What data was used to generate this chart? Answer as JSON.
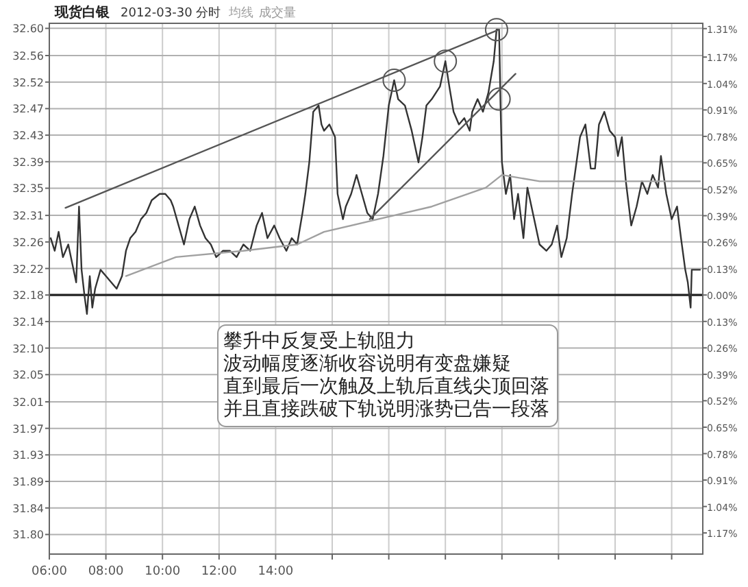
{
  "chart_data": {
    "type": "line",
    "title": "现货白银",
    "subtitle": "2012-03-30 分时",
    "annotations": [
      "成交量",
      "攀升中反复受上轨阻力",
      "波动幅度逐渐收容说明有变盘嫌疑",
      "直到最后一次触及上轨后直线尖顶回落",
      "并且直接跌破下轨说明涨势已告一段落"
    ],
    "xlim": [
      6,
      29.1
    ],
    "xticks": [
      {
        "value": 6,
        "label": "06:00"
      },
      {
        "value": 8,
        "label": "08:00"
      },
      {
        "value": 10,
        "label": "10:00"
      },
      {
        "value": 12,
        "label": "12:00"
      },
      {
        "value": 14,
        "label": "14:00"
      },
      {
        "value": 16,
        "label": null
      },
      {
        "value": 18,
        "label": null
      },
      {
        "value": 20,
        "label": null
      },
      {
        "value": 22,
        "label": null
      },
      {
        "value": 24,
        "label": null
      },
      {
        "value": 26,
        "label": null
      },
      {
        "value": 28,
        "label": null
      }
    ],
    "ylim": [
      31.77,
      32.61
    ],
    "yticks": [
      {
        "value": 31.801,
        "label": "31.80"
      },
      {
        "value": 31.843,
        "label": "31.84"
      },
      {
        "value": 31.885,
        "label": "31.89"
      },
      {
        "value": 31.927,
        "label": "31.93"
      },
      {
        "value": 31.969,
        "label": "31.97"
      },
      {
        "value": 32.011,
        "label": "32.01"
      },
      {
        "value": 32.054,
        "label": "32.05"
      },
      {
        "value": 32.096,
        "label": "32.10"
      },
      {
        "value": 32.138,
        "label": "32.14"
      },
      {
        "value": 32.18,
        "label": "32.18"
      },
      {
        "value": 32.222,
        "label": "32.22"
      },
      {
        "value": 32.264,
        "label": "32.26"
      },
      {
        "value": 32.306,
        "label": "32.31"
      },
      {
        "value": 32.349,
        "label": "32.35"
      },
      {
        "value": 32.391,
        "label": "32.39"
      },
      {
        "value": 32.433,
        "label": "32.43"
      },
      {
        "value": 32.475,
        "label": "32.47"
      },
      {
        "value": 32.517,
        "label": "32.52"
      },
      {
        "value": 32.559,
        "label": "32.56"
      },
      {
        "value": 32.602,
        "label": "32.60"
      }
    ],
    "y2lim": [
      -1.274,
      1.336
    ],
    "y2ticks": [
      {
        "value": -1.17,
        "label": "1.17%"
      },
      {
        "value": -1.04,
        "label": "1.04%"
      },
      {
        "value": -0.91,
        "label": "0.91%"
      },
      {
        "value": -0.78,
        "label": "0.78%"
      },
      {
        "value": -0.65,
        "label": "0.65%"
      },
      {
        "value": -0.52,
        "label": "0.52%"
      },
      {
        "value": -0.39,
        "label": "0.39%"
      },
      {
        "value": -0.26,
        "label": "0.26%"
      },
      {
        "value": -0.13,
        "label": "0.13%"
      },
      {
        "value": 0,
        "label": "0.00%"
      },
      {
        "value": 0.13,
        "label": "0.13%"
      },
      {
        "value": 0.26,
        "label": "0.26%"
      },
      {
        "value": 0.39,
        "label": "0.39%"
      },
      {
        "value": 0.52,
        "label": "0.52%"
      },
      {
        "value": 0.65,
        "label": "0.65%"
      },
      {
        "value": 0.78,
        "label": "0.78%"
      },
      {
        "value": 0.91,
        "label": "0.91%"
      },
      {
        "value": 1.04,
        "label": "1.04%"
      },
      {
        "value": 1.17,
        "label": "1.17%"
      },
      {
        "value": 1.31,
        "label": "1.31%"
      }
    ],
    "grid": true,
    "marker": "none",
    "line_style": "solid",
    "ref_lines": [
      {
        "axis": "y",
        "value": 32.18,
        "label": null,
        "color": "#222222"
      }
    ],
    "series": [
      {
        "color": "#333333",
        "x": [
          6.05,
          6.19,
          6.33,
          6.48,
          6.67,
          6.81,
          6.95,
          7.05,
          7.14,
          7.24,
          7.33,
          7.43,
          7.52,
          7.62,
          7.81,
          8.0,
          8.19,
          8.38,
          8.57,
          8.71,
          8.86,
          9.05,
          9.24,
          9.43,
          9.62,
          9.9,
          10.1,
          10.29,
          10.38,
          10.57,
          10.76,
          10.95,
          11.14,
          11.33,
          11.52,
          11.71,
          11.9,
          12.14,
          12.38,
          12.62,
          12.86,
          13.1,
          13.33,
          13.52,
          13.71,
          13.95,
          14.14,
          14.38,
          14.57,
          14.76,
          14.95,
          15.05,
          15.19,
          15.33,
          15.52,
          15.62,
          15.71,
          15.9,
          16.1,
          16.19,
          16.38,
          16.48,
          16.67,
          16.86,
          17.05,
          17.24,
          17.43,
          17.62,
          17.81,
          18.0,
          18.19,
          18.33,
          18.57,
          18.81,
          19.05,
          19.19,
          19.33,
          19.52,
          19.81,
          20.0,
          20.14,
          20.29,
          20.48,
          20.67,
          20.86,
          20.95,
          21.14,
          21.33,
          21.52,
          21.71,
          21.81,
          21.9,
          21.95,
          22.0,
          22.14,
          22.29,
          22.43,
          22.57,
          22.76,
          22.9,
          23.14,
          23.33,
          23.57,
          23.76,
          23.95,
          24.1,
          24.29,
          24.48,
          24.76,
          24.95,
          25.14,
          25.29,
          25.43,
          25.62,
          25.81,
          26.0,
          26.1,
          26.24,
          26.38,
          26.57,
          26.76,
          26.95,
          27.14,
          27.33,
          27.52,
          27.62,
          27.81,
          28.0,
          28.19,
          28.33,
          28.48,
          28.57,
          28.67,
          28.71,
          29.0
        ],
        "values": [
          32.27,
          32.25,
          32.28,
          32.24,
          32.26,
          32.23,
          32.2,
          32.32,
          32.22,
          32.18,
          32.15,
          32.21,
          32.16,
          32.19,
          32.22,
          32.21,
          32.2,
          32.19,
          32.21,
          32.25,
          32.27,
          32.28,
          32.3,
          32.31,
          32.33,
          32.34,
          32.34,
          32.33,
          32.32,
          32.29,
          32.26,
          32.3,
          32.32,
          32.29,
          32.27,
          32.26,
          32.24,
          32.25,
          32.25,
          32.24,
          32.26,
          32.25,
          32.29,
          32.31,
          32.27,
          32.29,
          32.27,
          32.25,
          32.27,
          32.26,
          32.31,
          32.34,
          32.39,
          32.47,
          32.48,
          32.45,
          32.44,
          32.45,
          32.43,
          32.34,
          32.3,
          32.32,
          32.34,
          32.37,
          32.34,
          32.31,
          32.3,
          32.34,
          32.4,
          32.48,
          32.52,
          32.49,
          32.48,
          32.44,
          32.39,
          32.43,
          32.48,
          32.49,
          32.51,
          32.55,
          32.51,
          32.47,
          32.45,
          32.46,
          32.44,
          32.47,
          32.49,
          32.47,
          32.5,
          32.55,
          32.6,
          32.6,
          32.48,
          32.39,
          32.34,
          32.37,
          32.3,
          32.34,
          32.27,
          32.35,
          32.3,
          32.26,
          32.25,
          32.26,
          32.29,
          32.24,
          32.27,
          32.34,
          32.43,
          32.45,
          32.38,
          32.38,
          32.45,
          32.47,
          32.44,
          32.43,
          32.4,
          32.43,
          32.36,
          32.29,
          32.32,
          32.36,
          32.34,
          32.37,
          32.35,
          32.4,
          32.34,
          32.3,
          32.32,
          32.27,
          32.22,
          32.2,
          32.16,
          32.22,
          32.22
        ]
      },
      {
        "name": "均线",
        "color": "#a0a0a0",
        "x": [
          8.71,
          10.48,
          12.86,
          14.76,
          15.71,
          17.62,
          19.52,
          21.43,
          22.0,
          23.33,
          24.76,
          26.67,
          29.0
        ],
        "values": [
          32.21,
          32.24,
          32.25,
          32.26,
          32.28,
          32.3,
          32.32,
          32.35,
          32.37,
          32.36,
          32.36,
          32.36,
          32.36
        ]
      },
      {
        "color": "#555555",
        "x": [
          6.57,
          21.9
        ],
        "values": [
          32.318,
          32.6
        ]
      },
      {
        "color": "#555555",
        "x": [
          17.33,
          22.48
        ],
        "values": [
          32.3,
          32.53
        ]
      },
      {
        "type": "scatter",
        "marker": "circle",
        "color": "#555555",
        "x": [
          18.19,
          20.0,
          21.81,
          21.9
        ],
        "values": [
          32.52,
          32.55,
          32.6,
          32.49
        ]
      }
    ]
  }
}
